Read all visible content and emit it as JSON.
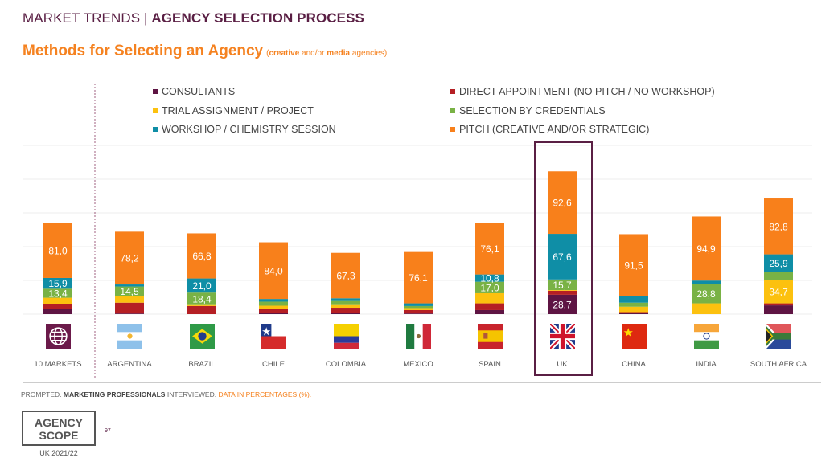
{
  "header": {
    "section": "MARKET TRENDS",
    "separator": " | ",
    "topic": "AGENCY SELECTION PROCESS"
  },
  "title": {
    "main": "Methods for Selecting an Agency",
    "sub_open": "(",
    "sub_b1": "creative",
    "sub_mid": " and/or ",
    "sub_b2": "media",
    "sub_end": " agencies)"
  },
  "footer": {
    "p1": "PROMPTED. ",
    "p2": "MARKETING PROFESSIONALS",
    "p3": " INTERVIEWED. ",
    "p4": "DATA IN PERCENTAGES (%).",
    "logo_line1": "AGENCY",
    "logo_line2": "SCOPE",
    "logo_sub": "UK 2021/22",
    "page": "97"
  },
  "colors": {
    "consultants": "#5e1443",
    "direct": "#b51f24",
    "trial": "#fcc10f",
    "credentials": "#79b245",
    "workshop": "#0f8ea6",
    "pitch": "#f8801b",
    "highlight": "#5a1f44"
  },
  "chart_data": {
    "type": "bar",
    "stacked": true,
    "highlight": "UK",
    "grid": true,
    "ylim": [
      0,
      250
    ],
    "categories": [
      "10 MARKETS",
      "ARGENTINA",
      "BRAZIL",
      "CHILE",
      "COLOMBIA",
      "MEXICO",
      "SPAIN",
      "UK",
      "CHINA",
      "INDIA",
      "SOUTH AFRICA"
    ],
    "flags": [
      "globe",
      "argentina",
      "brazil",
      "chile",
      "colombia",
      "mexico",
      "spain",
      "uk",
      "china",
      "india",
      "south-africa"
    ],
    "series": [
      {
        "name": "CONSULTANTS",
        "key": "consultants",
        "values": [
          7.5,
          1,
          0,
          2,
          2,
          1,
          6,
          28.7,
          2,
          0,
          13
        ],
        "labels": [
          null,
          null,
          null,
          null,
          null,
          null,
          null,
          "28,7",
          null,
          null,
          null
        ]
      },
      {
        "name": "DIRECT APPOINTMENT (NO PITCH / NO WORKSHOP)",
        "key": "direct",
        "values": [
          7.8,
          16,
          12,
          5.5,
          7.5,
          5,
          10,
          6,
          1,
          0,
          3
        ],
        "labels": [
          null,
          null,
          null,
          null,
          null,
          null,
          null,
          null,
          null,
          null,
          null
        ]
      },
      {
        "name": "TRIAL ASSIGNMENT / PROJECT",
        "key": "trial",
        "values": [
          9,
          9.5,
          1.5,
          5,
          4,
          3,
          15,
          1,
          8,
          16,
          34.7
        ],
        "labels": [
          null,
          null,
          null,
          null,
          null,
          null,
          null,
          null,
          null,
          null,
          "34,7"
        ]
      },
      {
        "name": "SELECTION BY CREDENTIALS",
        "key": "credentials",
        "values": [
          13.4,
          14.5,
          18.4,
          6,
          6,
          3,
          17,
          15.7,
          6,
          28.8,
          12
        ],
        "labels": [
          "13,4",
          "14,5",
          "18,4",
          null,
          null,
          null,
          "17,0",
          "15,7",
          null,
          "28,8",
          null
        ]
      },
      {
        "name": "WORKSHOP / CHEMISTRY SESSION",
        "key": "workshop",
        "values": [
          15.9,
          3,
          21,
          4,
          4,
          4,
          10.8,
          67.6,
          10,
          5,
          25.9
        ],
        "labels": [
          "15,9",
          null,
          "21,0",
          null,
          null,
          null,
          "10,8",
          "67,6",
          null,
          null,
          "25,9"
        ]
      },
      {
        "name": "PITCH (CREATIVE AND/OR STRATEGIC)",
        "key": "pitch",
        "values": [
          81,
          78.2,
          66.8,
          84,
          67.3,
          76.1,
          76.1,
          92.6,
          91.5,
          94.9,
          82.8
        ],
        "labels": [
          "81,0",
          "78,2",
          "66,8",
          "84,0",
          "67,3",
          "76,1",
          "76,1",
          "92,6",
          "91,5",
          "94,9",
          "82,8"
        ]
      }
    ]
  }
}
